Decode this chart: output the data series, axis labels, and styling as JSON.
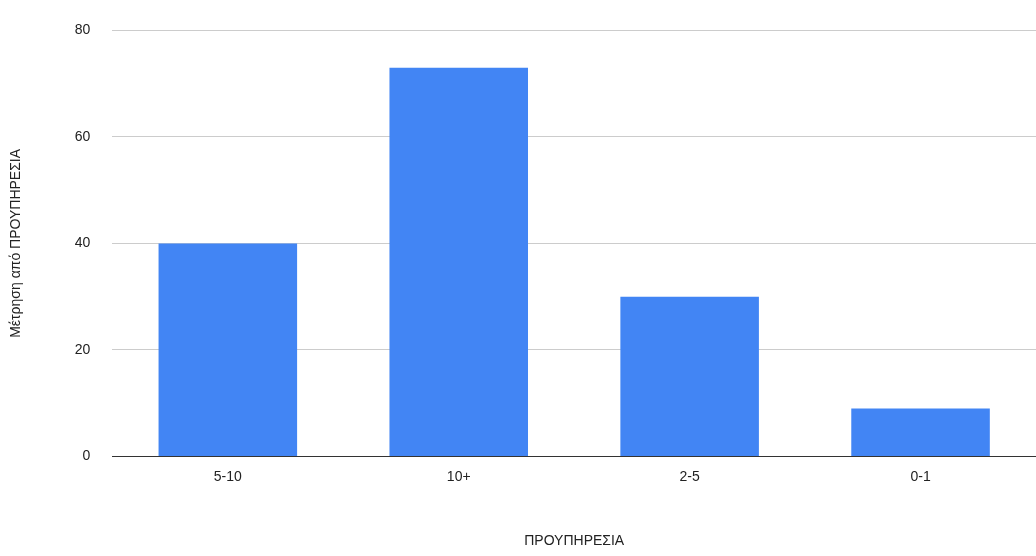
{
  "chart_data": {
    "type": "bar",
    "xlabel": "ΠΡΟΥΠΗΡΕΣΙΑ",
    "ylabel": "Μέτρηση από ΠΡΟΥΠΗΡΕΣΙΑ",
    "categories": [
      "5-10",
      "10+",
      "2-5",
      "0-1"
    ],
    "values": [
      40,
      73,
      30,
      9
    ],
    "color": "#4285f4",
    "ylim": [
      0,
      80
    ],
    "yticks": [
      0,
      20,
      40,
      60,
      80
    ],
    "grid": "y",
    "legend": false
  }
}
